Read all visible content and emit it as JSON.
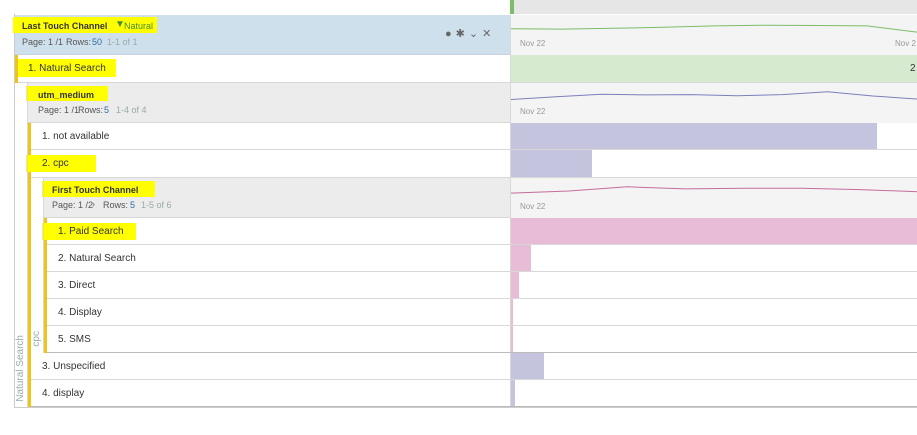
{
  "colors": {
    "highlight": "#ffff00",
    "header_blue": "#cfe0ed",
    "header_gray": "#ececec",
    "green_bar": "#d6ead0",
    "purple_bar": "#c4c4df",
    "pink_bar": "#e8bcd7",
    "green_line": "#7bbd68",
    "purple_line": "#7d7fbc",
    "pink_line": "#c46d9c",
    "accent_yellow": "#f0c419"
  },
  "header1": {
    "title": "Last Touch Channel",
    "filter_icon": "filter-icon",
    "filter_value": "Natural",
    "page_text": "Page: 1 /1",
    "rows_label": "Rows:",
    "rows_value": "50",
    "range_text": "1-1 of 1",
    "chart_start": "Nov 22",
    "chart_end": "Nov 2",
    "icons": [
      "info-icon",
      "gear-icon",
      "chevron-down-icon",
      "close-icon"
    ],
    "sparkline": [
      0.55,
      0.58,
      0.52,
      0.45,
      0.35,
      0.3,
      0.32,
      0.35,
      0.8
    ]
  },
  "row1": {
    "label": "1. Natural Search",
    "value_cut": "2",
    "bar_fraction": 1.0
  },
  "header2": {
    "title": "utm_medium",
    "page_text": "Page: 1 /1",
    "rows_label": "Rows:",
    "rows_value": "5",
    "range_text": "1-4 of 4",
    "chart_start": "Nov 22",
    "sparkline": [
      0.75,
      0.55,
      0.38,
      0.42,
      0.4,
      0.48,
      0.4,
      0.2,
      0.5,
      0.72
    ]
  },
  "rows2": [
    {
      "label": "1. not available",
      "bar_fraction": 0.9,
      "highlight": false
    },
    {
      "label": "2. cpc",
      "bar_fraction": 0.2,
      "highlight": true
    }
  ],
  "header3": {
    "title": "First Touch Channel",
    "page_text": "Page: 1 /2",
    "next_icon": "chevron-right-icon",
    "rows_label": "Rows:",
    "rows_value": "5",
    "range_text": "1-5 of 6",
    "chart_start": "Nov 22",
    "sparkline": [
      0.65,
      0.5,
      0.2,
      0.35,
      0.3,
      0.3,
      0.4,
      0.55
    ]
  },
  "rows3": [
    {
      "label": "1. Paid Search",
      "bar_fraction": 1.0,
      "highlight": true
    },
    {
      "label": "2. Natural Search",
      "bar_fraction": 0.05,
      "highlight": false
    },
    {
      "label": "3. Direct",
      "bar_fraction": 0.02,
      "highlight": false
    },
    {
      "label": "4. Display",
      "bar_fraction": 0.005,
      "highlight": false
    },
    {
      "label": "5. SMS",
      "bar_fraction": 0.002,
      "highlight": false
    }
  ],
  "rows4": [
    {
      "label": "3. Unspecified",
      "bar_fraction": 0.08
    },
    {
      "label": "4. display",
      "bar_fraction": 0.01
    }
  ],
  "vlabels": {
    "outer": "Natural Search",
    "inner": "cpc"
  }
}
